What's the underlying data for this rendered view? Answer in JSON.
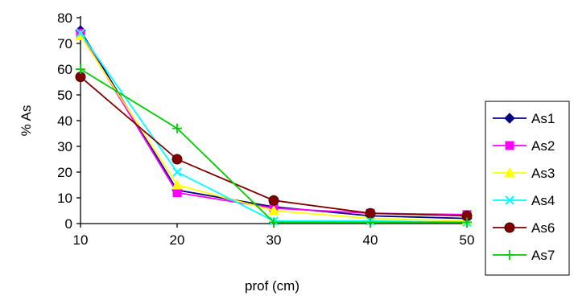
{
  "chart_data": {
    "type": "line",
    "title": "",
    "xlabel": "prof (cm)",
    "ylabel": "% As",
    "x": [
      10,
      20,
      30,
      40,
      50
    ],
    "xticks": [
      "10",
      "20",
      "30",
      "40",
      "50"
    ],
    "yticks": [
      "0",
      "10",
      "20",
      "30",
      "40",
      "50",
      "60",
      "70",
      "80"
    ],
    "xlim": [
      10,
      50
    ],
    "ylim": [
      0,
      80
    ],
    "grid": false,
    "legend_position": "right",
    "series": [
      {
        "name": "As1",
        "values": [
          75,
          13,
          6.5,
          3,
          2
        ],
        "color": "#000080",
        "marker": "diamond"
      },
      {
        "name": "As2",
        "values": [
          74,
          12,
          6,
          4,
          3.5
        ],
        "color": "#ff00ff",
        "marker": "square"
      },
      {
        "name": "As3",
        "values": [
          73,
          15,
          5,
          2,
          1
        ],
        "color": "#ffff00",
        "marker": "triangle"
      },
      {
        "name": "As4",
        "values": [
          74,
          20,
          1,
          1,
          0.5
        ],
        "color": "#00ffff",
        "marker": "x"
      },
      {
        "name": "As6",
        "values": [
          57,
          25,
          9,
          4,
          3
        ],
        "color": "#800000",
        "marker": "circle"
      },
      {
        "name": "As7",
        "values": [
          60,
          37,
          0.5,
          0.5,
          0.5
        ],
        "color": "#00cc00",
        "marker": "plus"
      }
    ]
  }
}
